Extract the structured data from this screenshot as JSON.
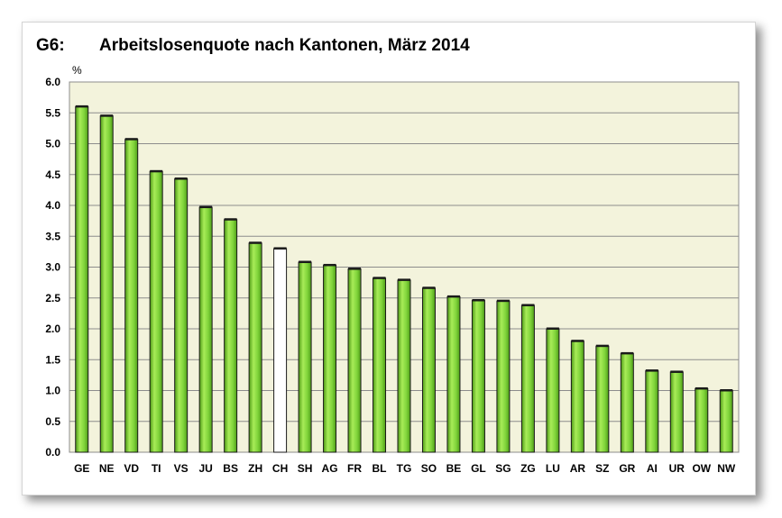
{
  "chart_data": {
    "type": "bar",
    "title_label": "G6:",
    "title": "Arbeitslosenquote nach Kantonen, März 2014",
    "ylabel": "%",
    "xlabel": "",
    "ylim": [
      0,
      6
    ],
    "yticks": [
      "0.0",
      "0.5",
      "1.0",
      "1.5",
      "2.0",
      "2.5",
      "3.0",
      "3.5",
      "4.0",
      "4.5",
      "5.0",
      "5.5",
      "6.0"
    ],
    "categories": [
      "GE",
      "NE",
      "VD",
      "TI",
      "VS",
      "JU",
      "BS",
      "ZH",
      "CH",
      "SH",
      "AG",
      "FR",
      "BL",
      "TG",
      "SO",
      "BE",
      "GL",
      "SG",
      "ZG",
      "LU",
      "AR",
      "SZ",
      "GR",
      "AI",
      "UR",
      "OW",
      "NW"
    ],
    "values": [
      5.6,
      5.45,
      5.07,
      4.55,
      4.43,
      3.97,
      3.77,
      3.39,
      3.3,
      3.08,
      3.03,
      2.97,
      2.82,
      2.79,
      2.66,
      2.52,
      2.46,
      2.45,
      2.38,
      2.0,
      1.8,
      1.72,
      1.6,
      1.32,
      1.3,
      1.03,
      1.0
    ],
    "highlight": "CH",
    "colors": {
      "bar": "#7fd33a",
      "bar_highlight": "#ffffff",
      "plot_background": "#f3f3dc",
      "gridline": "#8c8c8c"
    },
    "grid": true
  }
}
